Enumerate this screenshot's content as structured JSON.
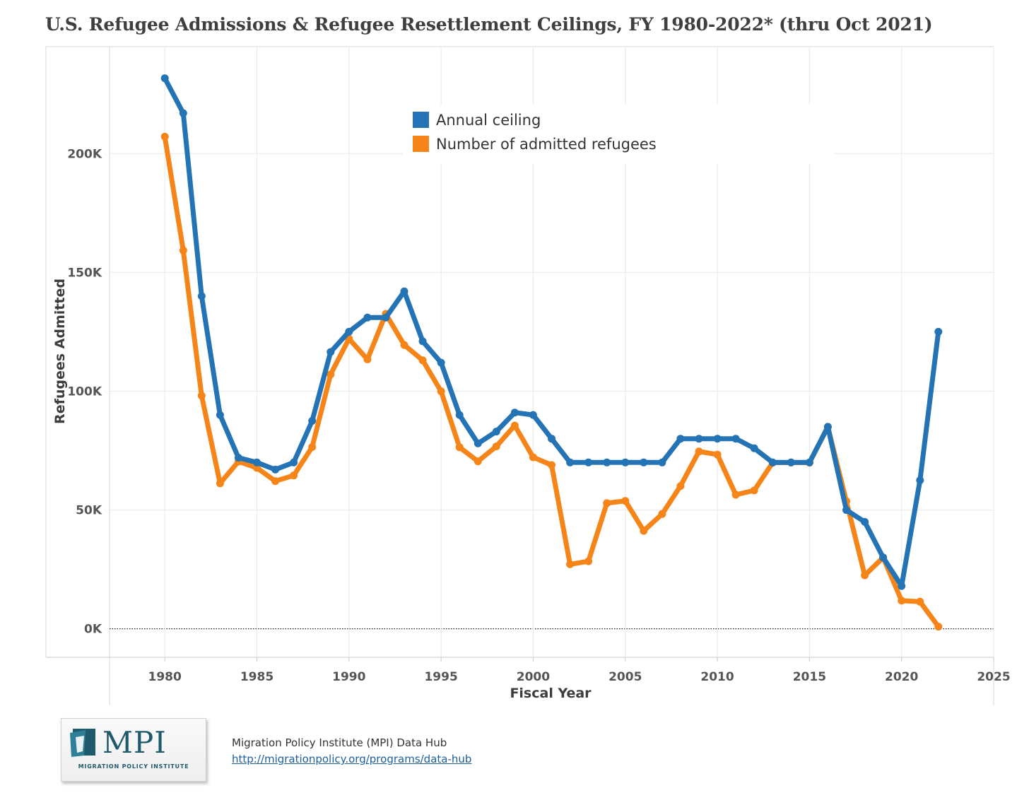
{
  "chart_data": {
    "type": "line",
    "title": "U.S. Refugee Admissions & Refugee Resettlement Ceilings, FY 1980-2022* (thru Oct 2021)",
    "xlabel": "Fiscal Year",
    "ylabel": "Refugees Admitted",
    "xlim": [
      1977,
      2025
    ],
    "ylim": [
      -12000,
      245000
    ],
    "x_ticks": [
      1980,
      1985,
      1990,
      1995,
      2000,
      2005,
      2010,
      2015,
      2020,
      2025
    ],
    "x_tick_labels": [
      "1980",
      "1985",
      "1990",
      "1995",
      "2000",
      "2005",
      "2010",
      "2015",
      "2020",
      "2025"
    ],
    "y_ticks": [
      0,
      50000,
      100000,
      150000,
      200000
    ],
    "y_tick_labels": [
      "0K",
      "50K",
      "100K",
      "150K",
      "200K"
    ],
    "grid": true,
    "legend_position": "top-center",
    "series": [
      {
        "name": "Annual ceiling",
        "color": "#2474b5",
        "points": [
          [
            1980,
            231700
          ],
          [
            1981,
            217000
          ],
          [
            1982,
            140000
          ],
          [
            1983,
            90000
          ],
          [
            1984,
            72000
          ],
          [
            1985,
            70000
          ],
          [
            1986,
            67000
          ],
          [
            1987,
            70000
          ],
          [
            1988,
            87500
          ],
          [
            1989,
            116500
          ],
          [
            1990,
            125000
          ],
          [
            1991,
            131000
          ],
          [
            1992,
            131000
          ],
          [
            1993,
            142000
          ],
          [
            1994,
            121000
          ],
          [
            1995,
            112000
          ],
          [
            1996,
            90000
          ],
          [
            1997,
            78000
          ],
          [
            1998,
            83000
          ],
          [
            1999,
            91000
          ],
          [
            2000,
            90000
          ],
          [
            2001,
            80000
          ],
          [
            2002,
            70000
          ],
          [
            2003,
            70000
          ],
          [
            2004,
            70000
          ],
          [
            2005,
            70000
          ],
          [
            2006,
            70000
          ],
          [
            2007,
            70000
          ],
          [
            2008,
            80000
          ],
          [
            2009,
            80000
          ],
          [
            2010,
            80000
          ],
          [
            2011,
            80000
          ],
          [
            2012,
            76000
          ],
          [
            2013,
            70000
          ],
          [
            2014,
            70000
          ],
          [
            2015,
            70000
          ],
          [
            2016,
            85000
          ],
          [
            2017,
            50000
          ],
          [
            2018,
            45000
          ],
          [
            2019,
            30000
          ],
          [
            2020,
            18000
          ],
          [
            2021,
            62500
          ],
          [
            2022,
            125000
          ]
        ]
      },
      {
        "name": "Number of admitted refugees",
        "color": "#f58518",
        "points": [
          [
            1980,
            207116
          ],
          [
            1981,
            159252
          ],
          [
            1982,
            98096
          ],
          [
            1983,
            61218
          ],
          [
            1984,
            70393
          ],
          [
            1985,
            67704
          ],
          [
            1986,
            62146
          ],
          [
            1987,
            64528
          ],
          [
            1988,
            76483
          ],
          [
            1989,
            107070
          ],
          [
            1990,
            122066
          ],
          [
            1991,
            113389
          ],
          [
            1992,
            132531
          ],
          [
            1993,
            119448
          ],
          [
            1994,
            112981
          ],
          [
            1995,
            99974
          ],
          [
            1996,
            76403
          ],
          [
            1997,
            70488
          ],
          [
            1998,
            76750
          ],
          [
            1999,
            85525
          ],
          [
            2000,
            72165
          ],
          [
            2001,
            68920
          ],
          [
            2002,
            27131
          ],
          [
            2003,
            28422
          ],
          [
            2004,
            52868
          ],
          [
            2005,
            53813
          ],
          [
            2006,
            41223
          ],
          [
            2007,
            48282
          ],
          [
            2008,
            60108
          ],
          [
            2009,
            74654
          ],
          [
            2010,
            73311
          ],
          [
            2011,
            56424
          ],
          [
            2012,
            58238
          ],
          [
            2013,
            69926
          ],
          [
            2014,
            69987
          ],
          [
            2015,
            69933
          ],
          [
            2016,
            84994
          ],
          [
            2017,
            53716
          ],
          [
            2018,
            22491
          ],
          [
            2019,
            30000
          ],
          [
            2020,
            11814
          ],
          [
            2021,
            11411
          ],
          [
            2022,
            900
          ]
        ]
      }
    ]
  },
  "source": {
    "name": "Migration Policy Institute (MPI) Data Hub",
    "url": "http://migrationpolicy.org/programs/data-hub"
  },
  "logo": {
    "text": "MPI",
    "subtext": "MIGRATION POLICY INSTITUTE",
    "color": "#1e5a6c"
  }
}
